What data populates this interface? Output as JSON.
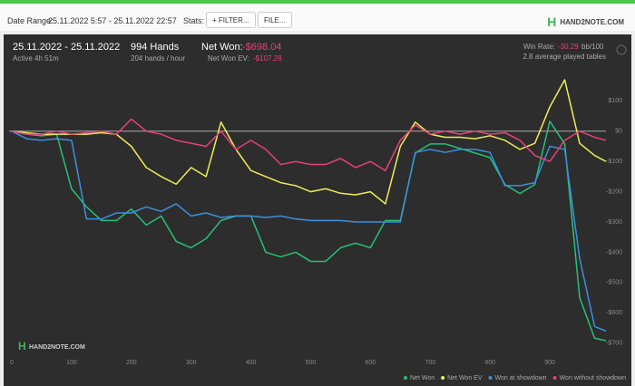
{
  "toolbar": {
    "date_range_label": "Date Range:",
    "date_range": "25.11.2022 5:57 - 25.11.2022 22:57",
    "stats_label": "Stats:",
    "filter_button": "FILTER...",
    "file_button": "FILE...",
    "logo": "HAND2NOTE.COM"
  },
  "summary": {
    "dates": "25.11.2022 - 25.11.2022",
    "active": "Active 4h 51m",
    "hands": "994 Hands",
    "hands_per_hour": "204 hands / hour",
    "net_won_label": "Net Won:",
    "net_won": "-$698.04",
    "net_won_ev_label": "Net Won  EV:",
    "net_won_ev": "-$107.28",
    "win_rate_label": "Win Rate:",
    "win_rate": "-30.29",
    "win_rate_unit": "bb/100",
    "tables": "2.8 average played tables",
    "watermark": "HAND2NOTE.COM"
  },
  "chart_data": {
    "type": "line",
    "x": [
      0,
      25,
      50,
      75,
      100,
      125,
      150,
      175,
      200,
      225,
      250,
      275,
      300,
      325,
      350,
      375,
      400,
      425,
      450,
      475,
      500,
      525,
      550,
      575,
      600,
      625,
      650,
      675,
      700,
      725,
      750,
      775,
      800,
      825,
      850,
      875,
      900,
      925,
      950,
      975,
      994
    ],
    "series": [
      {
        "name": "Net Won",
        "color": "#27c07a",
        "values": [
          0,
          -10,
          -15,
          -10,
          -190,
          -250,
          -295,
          -295,
          -257,
          -310,
          -280,
          -364,
          -385,
          -355,
          -295,
          -280,
          -280,
          -400,
          -415,
          -400,
          -430,
          -430,
          -385,
          -370,
          -385,
          -295,
          -295,
          -72,
          -42,
          -42,
          -57,
          -72,
          -87,
          -176,
          -206,
          -176,
          33,
          -42,
          -550,
          -684,
          -692
        ]
      },
      {
        "name": "Net Won  EV",
        "color": "#eeee55",
        "values": [
          0,
          -5,
          -10,
          -10,
          -10,
          -10,
          -5,
          -10,
          -50,
          -120,
          -150,
          -175,
          -120,
          -150,
          30,
          -60,
          -130,
          -150,
          -170,
          -180,
          -200,
          -190,
          -205,
          -210,
          -200,
          -240,
          -50,
          30,
          -10,
          -20,
          -20,
          -25,
          -15,
          -30,
          -60,
          -40,
          80,
          170,
          -40,
          -80,
          -100
        ]
      },
      {
        "name": "Won at showdown",
        "color": "#3d8fe0",
        "values": [
          0,
          -25,
          -30,
          -25,
          -30,
          -290,
          -290,
          -270,
          -270,
          -250,
          -265,
          -240,
          -280,
          -270,
          -285,
          -280,
          -280,
          -285,
          -280,
          -290,
          -295,
          -295,
          -295,
          -300,
          -300,
          -300,
          -300,
          -70,
          -60,
          -70,
          -60,
          -60,
          -70,
          -180,
          -180,
          -170,
          -50,
          -60,
          -420,
          -645,
          -660
        ]
      },
      {
        "name": "Won without showdown",
        "color": "#e8407a",
        "values": [
          0,
          -10,
          -10,
          0,
          -10,
          -5,
          0,
          -10,
          40,
          0,
          -10,
          -30,
          -40,
          -50,
          0,
          -60,
          -30,
          -60,
          -110,
          -100,
          -110,
          -110,
          -90,
          -120,
          -100,
          -130,
          -30,
          20,
          -10,
          0,
          -10,
          0,
          -10,
          -5,
          -30,
          -80,
          -100,
          -30,
          0,
          -20,
          -30
        ]
      }
    ],
    "xlim": [
      0,
      994
    ],
    "xticks": [
      0,
      100,
      200,
      300,
      400,
      500,
      600,
      700,
      800,
      900
    ],
    "ylim": [
      -740,
      200
    ],
    "yticks": [
      {
        "value": 100,
        "label": "$100"
      },
      {
        "value": 0,
        "label": "$0"
      },
      {
        "value": -100,
        "label": "-$100"
      },
      {
        "value": -200,
        "label": "-$200"
      },
      {
        "value": -300,
        "label": "-$300"
      },
      {
        "value": -400,
        "label": "-$400"
      },
      {
        "value": -500,
        "label": "-$500"
      },
      {
        "value": -600,
        "label": "-$600"
      },
      {
        "value": -700,
        "label": "-$700"
      }
    ]
  }
}
